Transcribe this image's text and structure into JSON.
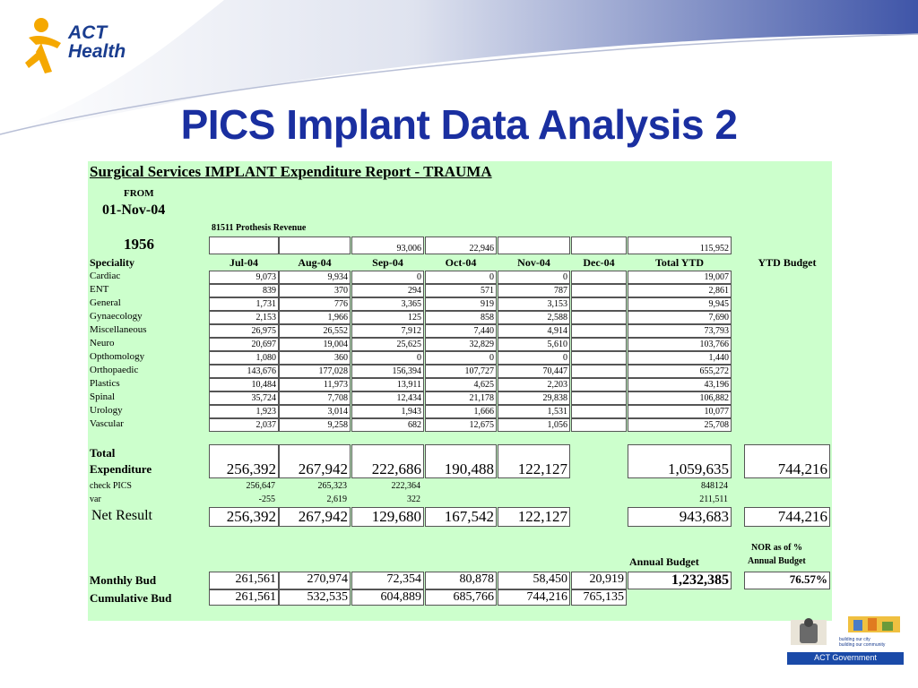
{
  "logo": {
    "line1": "ACT",
    "line2": "Health"
  },
  "title": "PICS Implant Data Analysis 2",
  "report": {
    "heading": "Surgical Services IMPLANT Expenditure Report - TRAUMA",
    "from_label": "FROM",
    "from_date": "01-Nov-04",
    "revenue_label": "81511 Prothesis Revenue",
    "revenue_code": "1956",
    "revenue_values": [
      "",
      "",
      "93,006",
      "22,946",
      "",
      "",
      "115,952"
    ],
    "specialty_header": "Speciality",
    "columns": [
      "Jul-04",
      "Aug-04",
      "Sep-04",
      "Oct-04",
      "Nov-04",
      "Dec-04",
      "Total YTD"
    ],
    "ytd_budget_header": "YTD Budget",
    "rows": [
      {
        "name": "Cardiac",
        "values": [
          "9,073",
          "9,934",
          "0",
          "0",
          "0",
          "",
          "19,007"
        ]
      },
      {
        "name": "ENT",
        "values": [
          "839",
          "370",
          "294",
          "571",
          "787",
          "",
          "2,861"
        ]
      },
      {
        "name": "General",
        "values": [
          "1,731",
          "776",
          "3,365",
          "919",
          "3,153",
          "",
          "9,945"
        ]
      },
      {
        "name": "Gynaecology",
        "values": [
          "2,153",
          "1,966",
          "125",
          "858",
          "2,588",
          "",
          "7,690"
        ]
      },
      {
        "name": "Miscellaneous",
        "values": [
          "26,975",
          "26,552",
          "7,912",
          "7,440",
          "4,914",
          "",
          "73,793"
        ]
      },
      {
        "name": "Neuro",
        "values": [
          "20,697",
          "19,004",
          "25,625",
          "32,829",
          "5,610",
          "",
          "103,766"
        ]
      },
      {
        "name": "Opthomology",
        "values": [
          "1,080",
          "360",
          "0",
          "0",
          "0",
          "",
          "1,440"
        ]
      },
      {
        "name": "Orthopaedic",
        "values": [
          "143,676",
          "177,028",
          "156,394",
          "107,727",
          "70,447",
          "",
          "655,272"
        ]
      },
      {
        "name": "Plastics",
        "values": [
          "10,484",
          "11,973",
          "13,911",
          "4,625",
          "2,203",
          "",
          "43,196"
        ]
      },
      {
        "name": "Spinal",
        "values": [
          "35,724",
          "7,708",
          "12,434",
          "21,178",
          "29,838",
          "",
          "106,882"
        ]
      },
      {
        "name": "Urology",
        "values": [
          "1,923",
          "3,014",
          "1,943",
          "1,666",
          "1,531",
          "",
          "10,077"
        ]
      },
      {
        "name": "Vascular",
        "values": [
          "2,037",
          "9,258",
          "682",
          "12,675",
          "1,056",
          "",
          "25,708"
        ]
      }
    ],
    "total_label_1": "Total",
    "total_label_2": "Expenditure",
    "total_values": [
      "256,392",
      "267,942",
      "222,686",
      "190,488",
      "122,127",
      "",
      "1,059,635"
    ],
    "total_ytd_budget": "744,216",
    "check_label": "check PICS",
    "check_values": [
      "256,647",
      "265,323",
      "222,364",
      "",
      "",
      "",
      "848124"
    ],
    "var_label": "var",
    "var_values": [
      "-255",
      "2,619",
      "322",
      "",
      "",
      "",
      "211,511"
    ],
    "net_label": "Net Result",
    "net_values": [
      "256,392",
      "267,942",
      "129,680",
      "167,542",
      "122,127",
      "",
      "943,683"
    ],
    "net_ytd_budget": "744,216",
    "nor_label_1": "NOR as  of %",
    "nor_label_2": "Annual Budget",
    "annual_budget_label": "Annual Budget",
    "monthly_label": "Monthly Bud",
    "monthly_values": [
      "261,561",
      "270,974",
      "72,354",
      "80,878",
      "58,450",
      "20,919"
    ],
    "annual_budget_value": "1,232,385",
    "nor_percent": "76.57%",
    "cumulative_label": "Cumulative Bud",
    "cumulative_values": [
      "261,561",
      "532,535",
      "604,889",
      "685,766",
      "744,216",
      "765,135"
    ]
  },
  "footer": {
    "slogan_1": "building our city",
    "slogan_2": "building our community",
    "gov_label": "ACT Government"
  },
  "colors": {
    "title": "#1a2fa0",
    "sheet_bg": "#ccffcc",
    "logo_orange": "#f5a800",
    "logo_blue": "#1a3d8f"
  }
}
